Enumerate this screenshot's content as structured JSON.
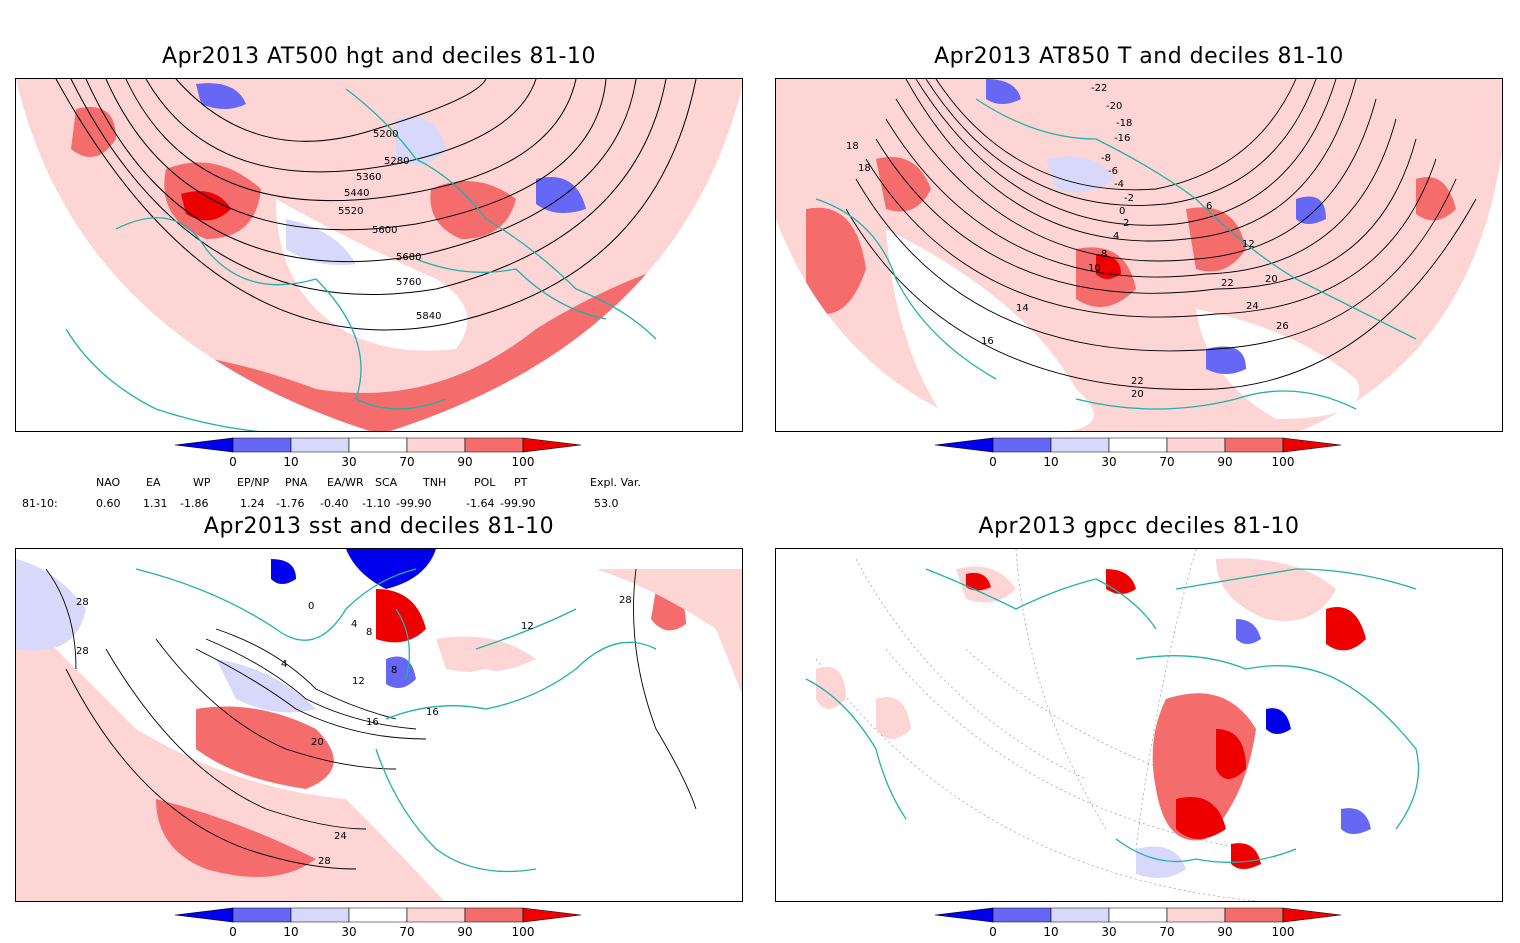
{
  "panels": [
    {
      "title": "Apr2013 AT500 hgt and deciles 81-10",
      "contour_labels": [
        "5200",
        "5280",
        "5360",
        "5440",
        "5520",
        "5600",
        "5680",
        "5760",
        "5840"
      ]
    },
    {
      "title": "Apr2013 AT850 T and deciles 81-10",
      "contour_labels": [
        "-22",
        "-20",
        "-18",
        "-16",
        "-8",
        "-6",
        "-4",
        "-2",
        "0",
        "2",
        "4",
        "6",
        "8",
        "10",
        "12",
        "14",
        "16",
        "18",
        "20",
        "22",
        "24",
        "26",
        "22",
        "20",
        "18"
      ]
    },
    {
      "title": "Apr2013 sst and deciles 81-10",
      "contour_labels": [
        "28",
        "28",
        "0",
        "4",
        "8",
        "8",
        "4",
        "12",
        "16",
        "16",
        "20",
        "24",
        "28",
        "12",
        "28"
      ]
    },
    {
      "title": "Apr2013 gpcc deciles 81-10",
      "contour_labels": []
    }
  ],
  "colorbar": {
    "ticks": [
      "0",
      "10",
      "30",
      "70",
      "90",
      "100"
    ],
    "colors": [
      "#0000ee",
      "#6767f5",
      "#d8d8fa",
      "#ffffff",
      "#fdd5d5",
      "#f46c6c",
      "#ee0000"
    ]
  },
  "indices": {
    "headers": [
      "NAO",
      "EA",
      "WP",
      "EP/NP",
      "PNA",
      "EA/WR",
      "SCA",
      "TNH",
      "POL",
      "PT",
      "Expl. Var."
    ],
    "row_label": "81-10:",
    "values": [
      "0.60",
      "1.31",
      "-1.86",
      "1.24",
      "-1.76",
      "-0.40",
      "-1.10",
      "-99.90",
      "-1.64",
      "-99.90",
      "53.0"
    ]
  },
  "colors": {
    "coast": "#20b2aa",
    "contour": "#000000",
    "grid": "#999999"
  }
}
